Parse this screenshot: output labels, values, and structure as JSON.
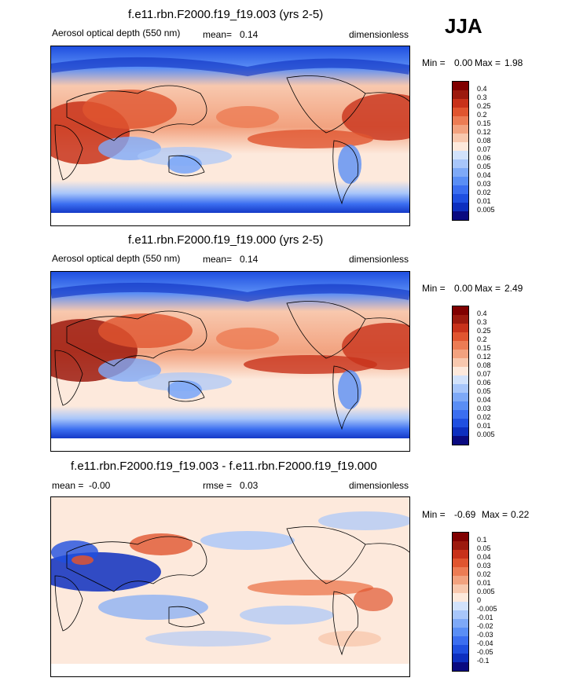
{
  "season": "JJA",
  "colors": {
    "aod_scale": [
      "#0a0a80",
      "#0d2fbf",
      "#1f4fe0",
      "#3b6ef0",
      "#5a8ef5",
      "#7ea9f7",
      "#a8c6fa",
      "#d2e2fb",
      "#fde9dc",
      "#f8c8ae",
      "#f2a27f",
      "#ec7c54",
      "#e0552f",
      "#c8321a",
      "#9c1a0e"
    ],
    "diff_scale": [
      "#0a0a80",
      "#0d2fbf",
      "#1f4fe0",
      "#3b6ef0",
      "#5a8ef5",
      "#7ea9f7",
      "#a8c6fa",
      "#d2e2fb",
      "#fde9dc",
      "#f8c8ae",
      "#f2a27f",
      "#ec7c54",
      "#e0552f",
      "#c8321a",
      "#9c1a0e"
    ],
    "land_outline": "#000000"
  },
  "panels": [
    {
      "title": "f.e11.rbn.F2000.f19_f19.003 (yrs 2-5)",
      "left_label": "Aerosol optical depth (550 nm)",
      "mid_label": "mean=",
      "mid_value": "0.14",
      "right_label": "dimensionless",
      "minmax": {
        "min_label": "Min =",
        "min": "0.00",
        "max_label": "Max =",
        "max": "1.98"
      },
      "colorbar_labels": [
        "0.4",
        "0.3",
        "0.25",
        "0.2",
        "0.15",
        "0.12",
        "0.08",
        "0.07",
        "0.06",
        "0.05",
        "0.04",
        "0.03",
        "0.02",
        "0.01",
        "0.005"
      ]
    },
    {
      "title": "f.e11.rbn.F2000.f19_f19.000 (yrs 2-5)",
      "left_label": "Aerosol optical depth (550 nm)",
      "mid_label": "mean=",
      "mid_value": "0.14",
      "right_label": "dimensionless",
      "minmax": {
        "min_label": "Min =",
        "min": "0.00",
        "max_label": "Max =",
        "max": "2.49"
      },
      "colorbar_labels": [
        "0.4",
        "0.3",
        "0.25",
        "0.2",
        "0.15",
        "0.12",
        "0.08",
        "0.07",
        "0.06",
        "0.05",
        "0.04",
        "0.03",
        "0.02",
        "0.01",
        "0.005"
      ]
    },
    {
      "title": "f.e11.rbn.F2000.f19_f19.003 - f.e11.rbn.F2000.f19_f19.000",
      "left_label": "mean =",
      "left_value": "-0.00",
      "mid_label": "rmse =",
      "mid_value": "0.03",
      "right_label": "dimensionless",
      "minmax": {
        "min_label": "Min =",
        "min": "-0.69",
        "max_label": "Max =",
        "max": "0.22"
      },
      "colorbar_labels": [
        "0.1",
        "0.05",
        "0.04",
        "0.03",
        "0.02",
        "0.01",
        "0.005",
        "0",
        "-0.005",
        "-0.01",
        "-0.02",
        "-0.03",
        "-0.04",
        "-0.05",
        "-0.1"
      ]
    }
  ]
}
